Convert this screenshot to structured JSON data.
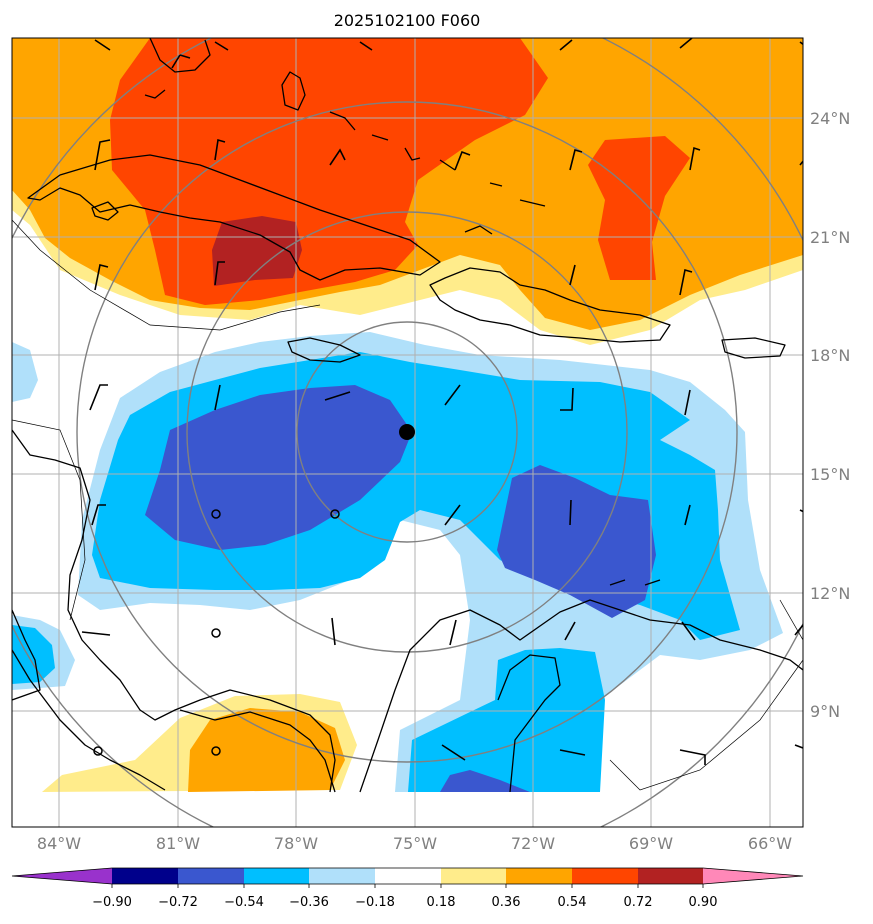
{
  "title": "2025102100 F060",
  "lat_labels": [
    "24°N",
    "21°N",
    "18°N",
    "15°N",
    "12°N",
    "9°N"
  ],
  "lon_labels": [
    "84°W",
    "81°W",
    "78°W",
    "75°W",
    "72°W",
    "69°W",
    "66°W"
  ],
  "colorbar": {
    "tick_labels": [
      "−0.90",
      "−0.72",
      "−0.54",
      "−0.36",
      "−0.18",
      "0.18",
      "0.36",
      "0.54",
      "0.72",
      "0.90"
    ],
    "colors": [
      "#9932cc",
      "#00008b",
      "#3a57cf",
      "#00bfff",
      "#b0e0fa",
      "#ffffff",
      "#ffec8b",
      "#ffa500",
      "#ff4500",
      "#b22222",
      "#ff88b8"
    ]
  },
  "field_colors": {
    "pos_0_18_0_36": "#ffec8b",
    "pos_0_36_0_54": "#ffa500",
    "pos_0_54_0_72": "#ff4500",
    "pos_0_72_0_90": "#b22222",
    "neg_0_36_0_18": "#b0e0fa",
    "neg_0_54_0_36": "#00bfff",
    "neg_0_72_0_54": "#3a57cf"
  },
  "storm_center": {
    "lat": 16.1,
    "lon": -75.1,
    "marker": "filled-circle"
  },
  "range_rings": "concentric circles around storm center",
  "wind_barbs": "black barbs and calm circles"
}
